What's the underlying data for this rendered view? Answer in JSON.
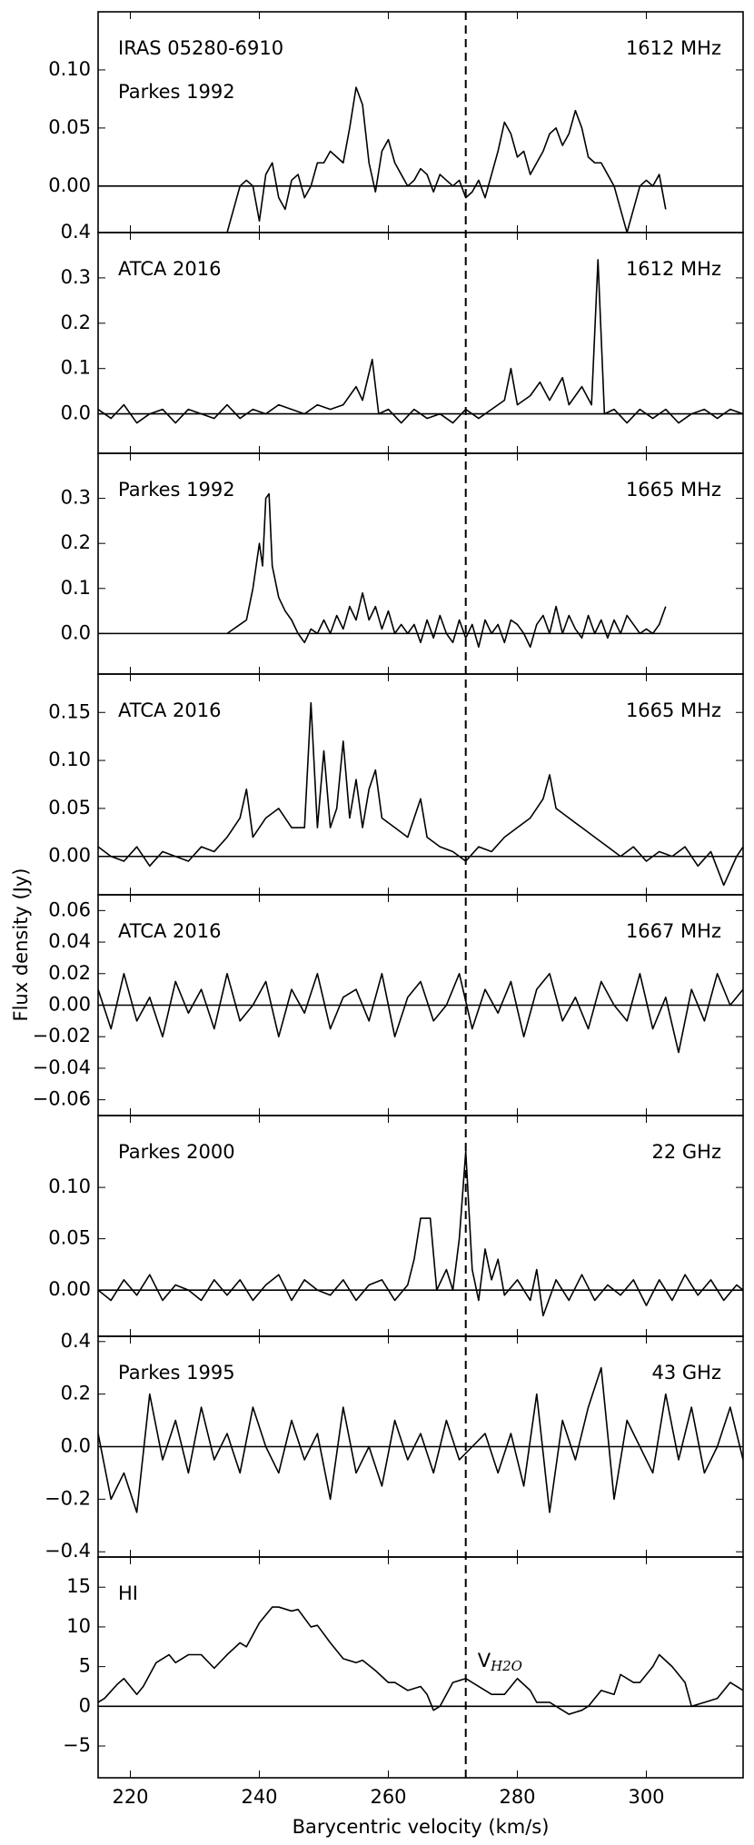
{
  "shared": {
    "ylabel": "Flux density (Jy)",
    "xlabel": "Barycentric velocity (km/s)",
    "xlim": [
      215,
      315
    ],
    "xticks": [
      220,
      240,
      260,
      280,
      300
    ],
    "vline": 272,
    "vline_label": "V",
    "vline_sub": "H2O"
  },
  "chart_data": [
    {
      "type": "line",
      "color": "#000000",
      "annotations": [
        "IRAS 05280-6910",
        "Parkes 1992"
      ],
      "right_label": "1612 MHz",
      "hline": 0,
      "ylim": [
        -0.04,
        0.15
      ],
      "yticks": [
        {
          "value": 0,
          "label": "0.00"
        },
        0.05,
        {
          "value": 0.1,
          "label": "0.10"
        }
      ],
      "x": [
        235,
        236,
        237,
        238,
        239,
        240,
        241,
        242,
        243,
        244,
        245,
        246,
        247,
        248,
        249,
        250,
        251,
        252,
        253,
        254,
        255,
        256,
        257,
        258,
        259,
        260,
        261,
        262,
        263,
        264,
        265,
        266,
        267,
        268,
        269,
        270,
        271,
        272,
        273,
        274,
        275,
        276,
        277,
        278,
        279,
        280,
        281,
        282,
        283,
        284,
        285,
        286,
        287,
        288,
        289,
        290,
        291,
        292,
        293,
        294,
        295,
        296,
        297,
        298,
        299,
        300,
        301,
        302,
        303
      ],
      "values": [
        -0.04,
        -0.02,
        0,
        0.005,
        0,
        -0.03,
        0.01,
        0.02,
        -0.01,
        -0.02,
        0.005,
        0.01,
        -0.01,
        0,
        0.02,
        0.02,
        0.03,
        0.025,
        0.02,
        0.05,
        0.085,
        0.07,
        0.02,
        -0.005,
        0.03,
        0.04,
        0.02,
        0.01,
        0,
        0.005,
        0.015,
        0.01,
        -0.005,
        0.01,
        0.005,
        0,
        0.005,
        -0.01,
        -0.005,
        0.005,
        -0.01,
        0.01,
        0.03,
        0.055,
        0.045,
        0.025,
        0.03,
        0.01,
        0.02,
        0.03,
        0.045,
        0.05,
        0.035,
        0.045,
        0.065,
        0.05,
        0.025,
        0.02,
        0.02,
        0.01,
        0,
        -0.02,
        -0.04,
        -0.02,
        0,
        0.005,
        0,
        0.01,
        -0.02
      ]
    },
    {
      "type": "line",
      "color": "#000000",
      "annotations": [
        "ATCA 2016"
      ],
      "right_label": "1612 MHz",
      "hline": 0,
      "ylim": [
        -0.087,
        0.4
      ],
      "yticks": [
        {
          "value": 0,
          "label": "0.0"
        },
        0.1,
        0.2,
        0.3,
        0.4
      ],
      "x": [
        215,
        217,
        219,
        221,
        223,
        225,
        227,
        229,
        231,
        233,
        235,
        237,
        239,
        241,
        243,
        245,
        247,
        249,
        251,
        253,
        255,
        256,
        257.5,
        258.5,
        260,
        262,
        264,
        266,
        268,
        270,
        272,
        274,
        276,
        278,
        279,
        280,
        282,
        283.5,
        285,
        287,
        288,
        290,
        291.5,
        292.5,
        293.5,
        295,
        297,
        299,
        301,
        303,
        305,
        307,
        309,
        311,
        313,
        315
      ],
      "values": [
        0.01,
        -0.01,
        0.02,
        -0.02,
        0,
        0.01,
        -0.02,
        0.01,
        0,
        -0.01,
        0.02,
        -0.01,
        0.01,
        0,
        0.02,
        0.01,
        0,
        0.02,
        0.01,
        0.02,
        0.06,
        0.03,
        0.12,
        0,
        0.01,
        -0.02,
        0.01,
        -0.01,
        0,
        -0.02,
        0.01,
        -0.01,
        0.01,
        0.03,
        0.1,
        0.02,
        0.04,
        0.07,
        0.03,
        0.08,
        0.02,
        0.06,
        0.02,
        0.34,
        0,
        0.01,
        -0.02,
        0.01,
        -0.01,
        0.01,
        -0.02,
        0,
        0.01,
        -0.01,
        0.01,
        0
      ]
    },
    {
      "type": "line",
      "color": "#000000",
      "annotations": [
        "Parkes 1992"
      ],
      "right_label": "1665 MHz",
      "hline": 0,
      "ylim": [
        -0.09,
        0.4
      ],
      "yticks": [
        {
          "value": 0,
          "label": "0.0"
        },
        0.1,
        0.2,
        0.3
      ],
      "x": [
        235,
        237,
        238,
        239,
        240,
        240.5,
        241,
        241.5,
        242,
        243,
        244,
        245,
        246,
        247,
        248,
        249,
        250,
        251,
        252,
        253,
        254,
        255,
        256,
        257,
        258,
        259,
        260,
        261,
        262,
        263,
        264,
        265,
        266,
        267,
        268,
        269,
        270,
        271,
        272,
        273,
        274,
        275,
        276,
        277,
        278,
        279,
        280,
        281,
        282,
        283,
        284,
        285,
        286,
        287,
        288,
        289,
        290,
        291,
        292,
        293,
        294,
        295,
        296,
        297,
        298,
        299,
        300,
        301,
        302,
        303
      ],
      "values": [
        0,
        0.02,
        0.03,
        0.1,
        0.2,
        0.15,
        0.3,
        0.31,
        0.15,
        0.08,
        0.05,
        0.03,
        0,
        -0.02,
        0.01,
        0,
        0.03,
        0,
        0.04,
        0.01,
        0.06,
        0.03,
        0.09,
        0.03,
        0.06,
        0.01,
        0.05,
        0,
        0.02,
        0,
        0.02,
        -0.02,
        0.03,
        -0.01,
        0.04,
        0,
        -0.02,
        0.03,
        -0.01,
        0.02,
        -0.03,
        0.03,
        0,
        0.02,
        -0.02,
        0.03,
        0.02,
        0,
        -0.03,
        0.02,
        0.04,
        0,
        0.06,
        0,
        0.04,
        0.01,
        -0.01,
        0.04,
        0,
        0.03,
        -0.01,
        0.03,
        0,
        0.04,
        0.02,
        0,
        0.01,
        0,
        0.02,
        0.06
      ]
    },
    {
      "type": "line",
      "color": "#000000",
      "annotations": [
        "ATCA 2016"
      ],
      "right_label": "1665 MHz",
      "hline": 0,
      "ylim": [
        -0.04,
        0.19
      ],
      "yticks": [
        {
          "value": 0,
          "label": "0.00"
        },
        0.05,
        {
          "value": 0.1,
          "label": "0.10"
        },
        0.15
      ],
      "x": [
        215,
        217,
        219,
        221,
        223,
        225,
        227,
        229,
        231,
        233,
        235,
        237,
        238,
        239,
        241,
        243,
        245,
        247,
        248,
        249,
        250,
        251,
        252,
        253,
        254,
        255,
        256,
        257,
        258,
        259,
        261,
        263,
        265,
        266,
        268,
        270,
        272,
        274,
        276,
        278,
        280,
        282,
        284,
        285,
        286,
        288,
        290,
        292,
        294,
        296,
        298,
        300,
        302,
        304,
        306,
        308,
        310,
        312,
        314,
        315
      ],
      "values": [
        0.01,
        0,
        -0.005,
        0.01,
        -0.01,
        0.005,
        0,
        -0.005,
        0.01,
        0.005,
        0.02,
        0.04,
        0.07,
        0.02,
        0.04,
        0.05,
        0.03,
        0.03,
        0.16,
        0.03,
        0.11,
        0.03,
        0.05,
        0.12,
        0.04,
        0.08,
        0.03,
        0.07,
        0.09,
        0.04,
        0.03,
        0.02,
        0.06,
        0.02,
        0.01,
        0.005,
        -0.005,
        0.01,
        0.005,
        0.02,
        0.03,
        0.04,
        0.06,
        0.085,
        0.05,
        0.04,
        0.03,
        0.02,
        0.01,
        0,
        0.01,
        -0.005,
        0.005,
        0,
        0.01,
        -0.01,
        0.005,
        -0.03,
        0,
        0.01
      ]
    },
    {
      "type": "line",
      "color": "#000000",
      "annotations": [
        "ATCA 2016"
      ],
      "right_label": "1667 MHz",
      "hline": 0,
      "ylim": [
        -0.07,
        0.07
      ],
      "yticks": [
        {
          "value": -0.06,
          "label": "−0.06"
        },
        {
          "value": -0.04,
          "label": "−0.04"
        },
        {
          "value": -0.02,
          "label": "−0.02"
        },
        {
          "value": 0,
          "label": "0.00"
        },
        0.02,
        0.04,
        0.06
      ],
      "x": [
        215,
        217,
        219,
        221,
        223,
        225,
        227,
        229,
        231,
        233,
        235,
        237,
        239,
        241,
        243,
        245,
        247,
        249,
        251,
        253,
        255,
        257,
        259,
        261,
        263,
        265,
        267,
        269,
        271,
        273,
        275,
        277,
        279,
        281,
        283,
        285,
        287,
        289,
        291,
        293,
        295,
        297,
        299,
        301,
        303,
        305,
        307,
        309,
        311,
        313,
        315
      ],
      "values": [
        0.01,
        -0.015,
        0.02,
        -0.01,
        0.005,
        -0.02,
        0.015,
        -0.005,
        0.01,
        -0.015,
        0.02,
        -0.01,
        0,
        0.015,
        -0.02,
        0.01,
        -0.005,
        0.02,
        -0.015,
        0.005,
        0.01,
        -0.01,
        0.02,
        -0.02,
        0.005,
        0.015,
        -0.01,
        0,
        0.02,
        -0.015,
        0.01,
        -0.005,
        0.015,
        -0.02,
        0.01,
        0.02,
        -0.01,
        0.005,
        -0.015,
        0.015,
        0,
        -0.01,
        0.02,
        -0.015,
        0.005,
        -0.03,
        0.01,
        -0.01,
        0.02,
        0,
        0.01
      ]
    },
    {
      "type": "line",
      "color": "#000000",
      "annotations": [
        "Parkes 2000"
      ],
      "right_label": "22 GHz",
      "hline": 0,
      "ylim": [
        -0.045,
        0.17
      ],
      "yticks": [
        {
          "value": 0,
          "label": "0.00"
        },
        0.05,
        {
          "value": 0.1,
          "label": "0.10"
        }
      ],
      "x": [
        215,
        217,
        219,
        221,
        223,
        225,
        227,
        229,
        231,
        233,
        235,
        237,
        239,
        241,
        243,
        245,
        247,
        249,
        251,
        253,
        255,
        257,
        259,
        261,
        263,
        264,
        265,
        266.5,
        267.5,
        269,
        270,
        271,
        272,
        273,
        274,
        275,
        276,
        277,
        278,
        280,
        282,
        283,
        284,
        286,
        288,
        290,
        292,
        294,
        296,
        298,
        300,
        302,
        304,
        306,
        308,
        310,
        312,
        314,
        315
      ],
      "values": [
        0,
        -0.01,
        0.01,
        -0.005,
        0.015,
        -0.01,
        0.005,
        0,
        -0.01,
        0.01,
        -0.005,
        0.01,
        -0.01,
        0.005,
        0.015,
        -0.01,
        0.01,
        0,
        -0.005,
        0.01,
        -0.01,
        0.005,
        0.01,
        -0.01,
        0.005,
        0.03,
        0.07,
        0.07,
        0,
        0.02,
        0,
        0.05,
        0.135,
        0.02,
        -0.01,
        0.04,
        0.01,
        0.03,
        -0.005,
        0.01,
        -0.01,
        0.02,
        -0.025,
        0.01,
        -0.01,
        0.015,
        -0.01,
        0.005,
        -0.005,
        0.01,
        -0.015,
        0.01,
        -0.01,
        0.015,
        -0.005,
        0.01,
        -0.01,
        0.005,
        0
      ]
    },
    {
      "type": "line",
      "color": "#000000",
      "annotations": [
        "Parkes 1995"
      ],
      "right_label": "43 GHz",
      "hline": 0,
      "ylim": [
        -0.42,
        0.42
      ],
      "yticks": [
        {
          "value": -0.4,
          "label": "−0.4"
        },
        {
          "value": -0.2,
          "label": "−0.2"
        },
        {
          "value": 0,
          "label": "0.0"
        },
        0.2,
        0.4
      ],
      "x": [
        215,
        217,
        219,
        221,
        223,
        225,
        227,
        229,
        231,
        233,
        235,
        237,
        239,
        241,
        243,
        245,
        247,
        249,
        251,
        253,
        255,
        257,
        259,
        261,
        263,
        265,
        267,
        269,
        271,
        273,
        275,
        277,
        279,
        281,
        283,
        285,
        287,
        289,
        291,
        293,
        295,
        297,
        299,
        301,
        303,
        305,
        307,
        309,
        311,
        313,
        315
      ],
      "values": [
        0.05,
        -0.2,
        -0.1,
        -0.25,
        0.2,
        -0.05,
        0.1,
        -0.1,
        0.15,
        -0.05,
        0.05,
        -0.1,
        0.15,
        0,
        -0.1,
        0.1,
        -0.05,
        0.05,
        -0.2,
        0.15,
        -0.1,
        0,
        -0.15,
        0.1,
        -0.05,
        0.05,
        -0.1,
        0.1,
        -0.05,
        0,
        0.05,
        -0.1,
        0.05,
        -0.15,
        0.2,
        -0.25,
        0.1,
        -0.05,
        0.15,
        0.3,
        -0.2,
        0.1,
        0,
        -0.1,
        0.2,
        -0.05,
        0.15,
        -0.1,
        0,
        0.15,
        -0.05
      ]
    },
    {
      "type": "line",
      "color": "#000000",
      "annotations": [
        "HI"
      ],
      "hline": 0,
      "ylim": [
        -9,
        18.8
      ],
      "yticks": [
        {
          "value": -5,
          "label": "−5"
        },
        0,
        5,
        10,
        15
      ],
      "x": [
        215,
        216,
        218,
        219,
        221,
        222,
        224,
        226,
        227,
        229,
        231,
        233,
        235,
        237,
        238,
        240,
        242,
        243,
        245,
        246,
        248,
        249,
        251,
        253,
        255,
        256,
        258,
        260,
        261,
        263,
        265,
        266,
        267,
        268,
        270,
        272,
        274,
        276,
        278,
        280,
        282,
        283,
        285,
        287,
        288,
        290,
        291,
        293,
        295,
        296,
        298,
        299,
        301,
        302,
        304,
        306,
        307,
        309,
        311,
        313,
        315
      ],
      "values": [
        0.5,
        1,
        2.8,
        3.5,
        1.5,
        2.5,
        5.5,
        6.5,
        5.5,
        6.5,
        6.5,
        4.8,
        6.5,
        8,
        7.5,
        10.5,
        12.5,
        12.5,
        12,
        12.2,
        10,
        10.2,
        8,
        6,
        5.5,
        5.8,
        4.5,
        3,
        3,
        2,
        2.5,
        1.5,
        -0.5,
        0,
        3,
        3.5,
        2.5,
        1.5,
        1.5,
        3.5,
        2,
        0.5,
        0.5,
        -0.5,
        -1,
        -0.5,
        0,
        2,
        1.5,
        4,
        3,
        3,
        5,
        6.5,
        5,
        3,
        0,
        0.5,
        1,
        3,
        2
      ]
    }
  ]
}
